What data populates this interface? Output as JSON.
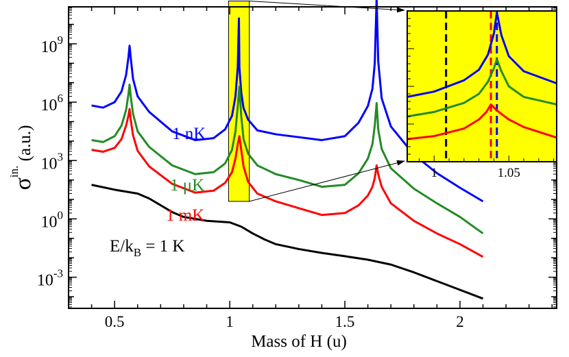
{
  "chart_data": {
    "type": "line",
    "xlabel": "Mass of H (u)",
    "ylabel": "σ",
    "ylabel_superscript": "in.",
    "ylabel_unit": "(a.u.)",
    "x_scale": "linear",
    "y_scale": "log",
    "xlim": [
      0.3,
      2.42
    ],
    "ylim": [
      -4.6,
      10.9
    ],
    "x_ticks": [
      0.5,
      1,
      1.5,
      2
    ],
    "x_tick_labels": [
      "0.5",
      "1",
      "1.5",
      "2"
    ],
    "y_ticks": [
      -3,
      0,
      3,
      6,
      9
    ],
    "y_tick_labels": [
      {
        "base": "10",
        "exp": "-3"
      },
      {
        "base": "10",
        "exp": "0"
      },
      {
        "base": "10",
        "exp": "3"
      },
      {
        "base": "10",
        "exp": "6"
      },
      {
        "base": "10",
        "exp": "9"
      }
    ],
    "grid": false,
    "series": [
      {
        "name": "1 nK",
        "color": "#0000ff",
        "x": [
          0.4,
          0.45,
          0.5,
          0.53,
          0.55,
          0.56,
          0.565,
          0.57,
          0.58,
          0.6,
          0.65,
          0.75,
          0.85,
          0.93,
          0.98,
          1.01,
          1.025,
          1.035,
          1.04,
          1.042,
          1.05,
          1.06,
          1.08,
          1.12,
          1.2,
          1.3,
          1.4,
          1.5,
          1.56,
          1.6,
          1.62,
          1.63,
          1.638,
          1.645,
          1.66,
          1.7,
          1.8,
          1.9,
          2.0,
          2.1
        ],
        "y": [
          5.83,
          5.72,
          6.0,
          6.55,
          7.4,
          8.3,
          8.9,
          8.3,
          7.2,
          6.3,
          5.5,
          4.5,
          4.05,
          4.15,
          4.6,
          5.3,
          6.3,
          7.8,
          10.3,
          7.8,
          6.5,
          5.7,
          5.1,
          4.55,
          4.35,
          4.2,
          4.05,
          4.25,
          4.95,
          5.8,
          6.7,
          8.0,
          11.35,
          8.1,
          6.2,
          4.75,
          3.3,
          2.35,
          1.6,
          0.9
        ]
      },
      {
        "name": "1 μK",
        "color": "#228b22",
        "x": [
          0.4,
          0.45,
          0.5,
          0.53,
          0.55,
          0.56,
          0.565,
          0.57,
          0.58,
          0.6,
          0.65,
          0.75,
          0.85,
          0.93,
          0.98,
          1.01,
          1.025,
          1.035,
          1.042,
          1.05,
          1.06,
          1.08,
          1.12,
          1.2,
          1.3,
          1.4,
          1.5,
          1.56,
          1.6,
          1.62,
          1.63,
          1.638,
          1.645,
          1.66,
          1.7,
          1.8,
          1.9,
          2.0,
          2.1
        ],
        "y": [
          4.05,
          3.95,
          4.25,
          4.8,
          5.6,
          6.4,
          6.9,
          6.3,
          5.4,
          4.5,
          3.7,
          2.75,
          2.3,
          2.4,
          2.85,
          3.55,
          4.5,
          5.8,
          6.8,
          5.3,
          4.1,
          3.35,
          2.75,
          2.3,
          2.0,
          1.65,
          1.75,
          2.35,
          3.1,
          3.85,
          4.8,
          5.95,
          4.6,
          3.6,
          2.6,
          1.55,
          0.8,
          0.1,
          -0.75
        ]
      },
      {
        "name": "1 mK",
        "color": "#ff0000",
        "x": [
          0.4,
          0.45,
          0.5,
          0.53,
          0.55,
          0.56,
          0.565,
          0.57,
          0.58,
          0.6,
          0.65,
          0.75,
          0.85,
          0.93,
          0.98,
          1.01,
          1.025,
          1.035,
          1.042,
          1.05,
          1.06,
          1.08,
          1.12,
          1.2,
          1.3,
          1.4,
          1.5,
          1.56,
          1.6,
          1.62,
          1.63,
          1.638,
          1.645,
          1.66,
          1.7,
          1.8,
          1.9,
          2.0,
          2.1
        ],
        "y": [
          3.55,
          3.45,
          3.65,
          4.1,
          4.8,
          5.3,
          5.65,
          5.1,
          4.3,
          3.5,
          2.7,
          1.8,
          1.35,
          1.45,
          1.85,
          2.4,
          3.1,
          3.85,
          4.25,
          3.55,
          2.7,
          1.9,
          1.3,
          0.9,
          0.55,
          0.2,
          0.3,
          0.7,
          1.2,
          1.65,
          2.1,
          2.75,
          2.3,
          1.65,
          0.8,
          -0.1,
          -0.75,
          -1.3,
          -1.95
        ]
      },
      {
        "name": "E/k_B = 1 K",
        "color": "#000000",
        "x": [
          0.4,
          0.5,
          0.6,
          0.65,
          0.7,
          0.75,
          0.8,
          0.9,
          1.0,
          1.05,
          1.1,
          1.15,
          1.2,
          1.3,
          1.4,
          1.5,
          1.6,
          1.7,
          1.8,
          1.9,
          2.0,
          2.1
        ],
        "y": [
          1.75,
          1.5,
          1.3,
          1.05,
          0.7,
          0.35,
          0.1,
          -0.1,
          -0.18,
          -0.4,
          -0.75,
          -1.05,
          -1.3,
          -1.55,
          -1.75,
          -1.92,
          -2.1,
          -2.35,
          -2.75,
          -3.2,
          -3.65,
          -4.1
        ]
      }
    ],
    "annotations": [
      {
        "text": "1 nK",
        "color": "#0000ff"
      },
      {
        "text": "1 μK",
        "color": "#228b22"
      },
      {
        "text": "1 mK",
        "color": "#ff0000"
      },
      {
        "text_main": "E/k",
        "text_sub": "B",
        "text_tail": " = 1 K",
        "color": "#000000"
      }
    ],
    "highlight": {
      "color": "#ffff00",
      "xlim": [
        0.995,
        1.085
      ],
      "ylim": [
        0.9,
        11.2
      ]
    },
    "inset": {
      "background": "#ffff00",
      "xlim": [
        0.982,
        1.082
      ],
      "x_ticks": [
        1,
        1.05
      ],
      "x_tick_labels": [
        "1",
        "1.05"
      ],
      "vlines": [
        {
          "x": 1.008,
          "color": "#000000",
          "style": "dashed"
        },
        {
          "x": 1.038,
          "color": "#ff0000",
          "style": "dashed"
        },
        {
          "x": 1.042,
          "color": "#0000ff",
          "style": "dashed"
        }
      ],
      "series": [
        {
          "color": "#0000ff",
          "x": [
            0.982,
            1.0,
            1.02,
            1.03,
            1.036,
            1.04,
            1.042,
            1.045,
            1.05,
            1.06,
            1.082
          ],
          "y": [
            0.43,
            0.465,
            0.54,
            0.61,
            0.71,
            0.85,
            0.99,
            0.84,
            0.7,
            0.6,
            0.52
          ]
        },
        {
          "color": "#228b22",
          "x": [
            0.982,
            1.0,
            1.02,
            1.03,
            1.036,
            1.04,
            1.042,
            1.045,
            1.05,
            1.06,
            1.082
          ],
          "y": [
            0.3,
            0.33,
            0.39,
            0.45,
            0.53,
            0.62,
            0.68,
            0.6,
            0.5,
            0.43,
            0.38
          ]
        },
        {
          "color": "#ff0000",
          "x": [
            0.982,
            1.0,
            1.02,
            1.03,
            1.035,
            1.038,
            1.042,
            1.05,
            1.06,
            1.082
          ],
          "y": [
            0.15,
            0.17,
            0.22,
            0.28,
            0.33,
            0.38,
            0.34,
            0.28,
            0.23,
            0.16
          ]
        }
      ]
    }
  }
}
